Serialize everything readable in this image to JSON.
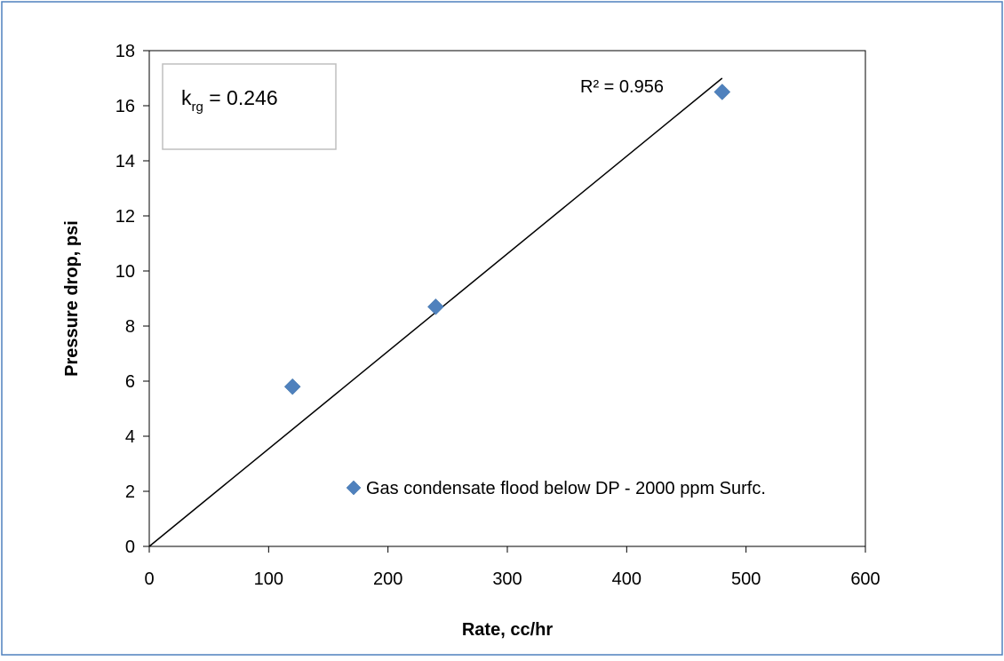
{
  "chart_data": {
    "type": "scatter",
    "xlabel": "Rate, cc/hr",
    "ylabel": "Pressure drop, psi",
    "xlim": [
      0,
      600
    ],
    "ylim": [
      0,
      18
    ],
    "x_ticks": [
      0,
      100,
      200,
      300,
      400,
      500,
      600
    ],
    "y_ticks": [
      0,
      2,
      4,
      6,
      8,
      10,
      12,
      14,
      16,
      18
    ],
    "grid": false,
    "legend_position": "bottom-right",
    "series": [
      {
        "name": "Gas condensate flood below DP - 2000 ppm Surfc.",
        "color": "#4f81bd",
        "marker": "diamond",
        "points": [
          {
            "x": 120,
            "y": 5.8
          },
          {
            "x": 240,
            "y": 8.7
          },
          {
            "x": 480,
            "y": 16.5
          }
        ]
      }
    ],
    "trendline": {
      "type": "linear",
      "through_origin": true,
      "x_start": 0,
      "y_start": 0,
      "x_end": 480,
      "y_end": 17.0,
      "color": "#000000",
      "r2_label": "R² = 0.956"
    },
    "annotation_box": {
      "symbol": "k",
      "subscript": "rg",
      "value_text": " = 0.246"
    }
  }
}
